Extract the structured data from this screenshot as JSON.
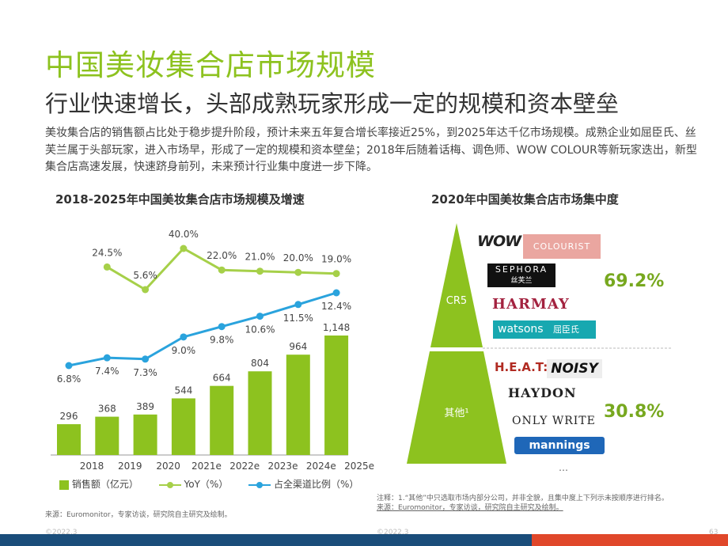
{
  "title": "中国美妆集合店市场规模",
  "subtitle": "行业快速增长，头部成熟玩家形成一定的规模和资本壁垒",
  "body": "美妆集合店的销售额占比处于稳步提升阶段，预计未来五年复合增长率接近25%，到2025年达千亿市场规模。成熟企业如屈臣氏、丝芙兰属于头部玩家，进入市场早，形成了一定的规模和资本壁垒；2018年后随着话梅、调色师、WOW COLOUR等新玩家迭出，新型集合店高速发展，快速跻身前列，未来预计行业集中度进一步下降。",
  "chart_data": [
    {
      "type": "bar",
      "title": "2018-2025年中国美妆集合店市场规模及增速",
      "categories": [
        "2018",
        "2019",
        "2020",
        "2021e",
        "2022e",
        "2023e",
        "2024e",
        "2025e"
      ],
      "series": [
        {
          "name": "销售额（亿元）",
          "type": "bar",
          "values": [
            296,
            368,
            389,
            544,
            664,
            804,
            964,
            1148
          ]
        },
        {
          "name": "YoY（%）",
          "type": "line",
          "values": [
            null,
            24.5,
            5.6,
            40.0,
            22.0,
            21.0,
            20.0,
            19.0
          ]
        },
        {
          "name": "占全渠道比例（%）",
          "type": "line",
          "values": [
            6.8,
            7.4,
            7.3,
            9.0,
            9.8,
            10.6,
            11.5,
            12.4
          ]
        }
      ],
      "bar_labels": [
        "296",
        "368",
        "389",
        "544",
        "664",
        "804",
        "964",
        "1,148"
      ],
      "yoy_labels": [
        "",
        "24.5%",
        "5.6%",
        "40.0%",
        "22.0%",
        "21.0%",
        "20.0%",
        "19.0%"
      ],
      "share_labels": [
        "6.8%",
        "7.4%",
        "7.3%",
        "9.0%",
        "9.8%",
        "10.6%",
        "11.5%",
        "12.4%"
      ],
      "colors": {
        "bar": "#8dc21f",
        "yoy": "#a6d049",
        "share": "#2aa3dd"
      }
    },
    {
      "type": "pie",
      "title": "2020年中国美妆集合店市场集中度",
      "categories": [
        "CR5",
        "其他¹"
      ],
      "values": [
        69.2,
        30.8
      ],
      "value_labels": [
        "69.2%",
        "30.8%"
      ]
    }
  ],
  "legend": {
    "bar": "销售额（亿元）",
    "yoy": "YoY（%）",
    "share": "占全渠道比例（%）"
  },
  "pyramid": {
    "top_label": "CR5",
    "bottom_label": "其他¹",
    "top_pct": "69.2%",
    "bottom_pct": "30.8%",
    "top_brands": [
      "WOW",
      "COLOURIST",
      "SEPHORA",
      "丝芙兰",
      "HARMAY",
      "watsons",
      "屈臣氏"
    ],
    "bottom_brands": [
      "H.E.A.T:",
      "NOISY",
      "HAYDON",
      "ONLY WRITE",
      "mannings"
    ],
    "ellipsis": "…"
  },
  "source_left": "来源：Euromonitor，专家访谈，研究院自主研究及绘制。",
  "note": "注释：1.“其他”中只选取市场内部分公司，并非全貌，且集中度上下列示未按顺序进行排名。",
  "source_right": "来源：Euromonitor，专家访谈，研究院自主研究及绘制。",
  "date": "©2022.3",
  "page_number": "63"
}
